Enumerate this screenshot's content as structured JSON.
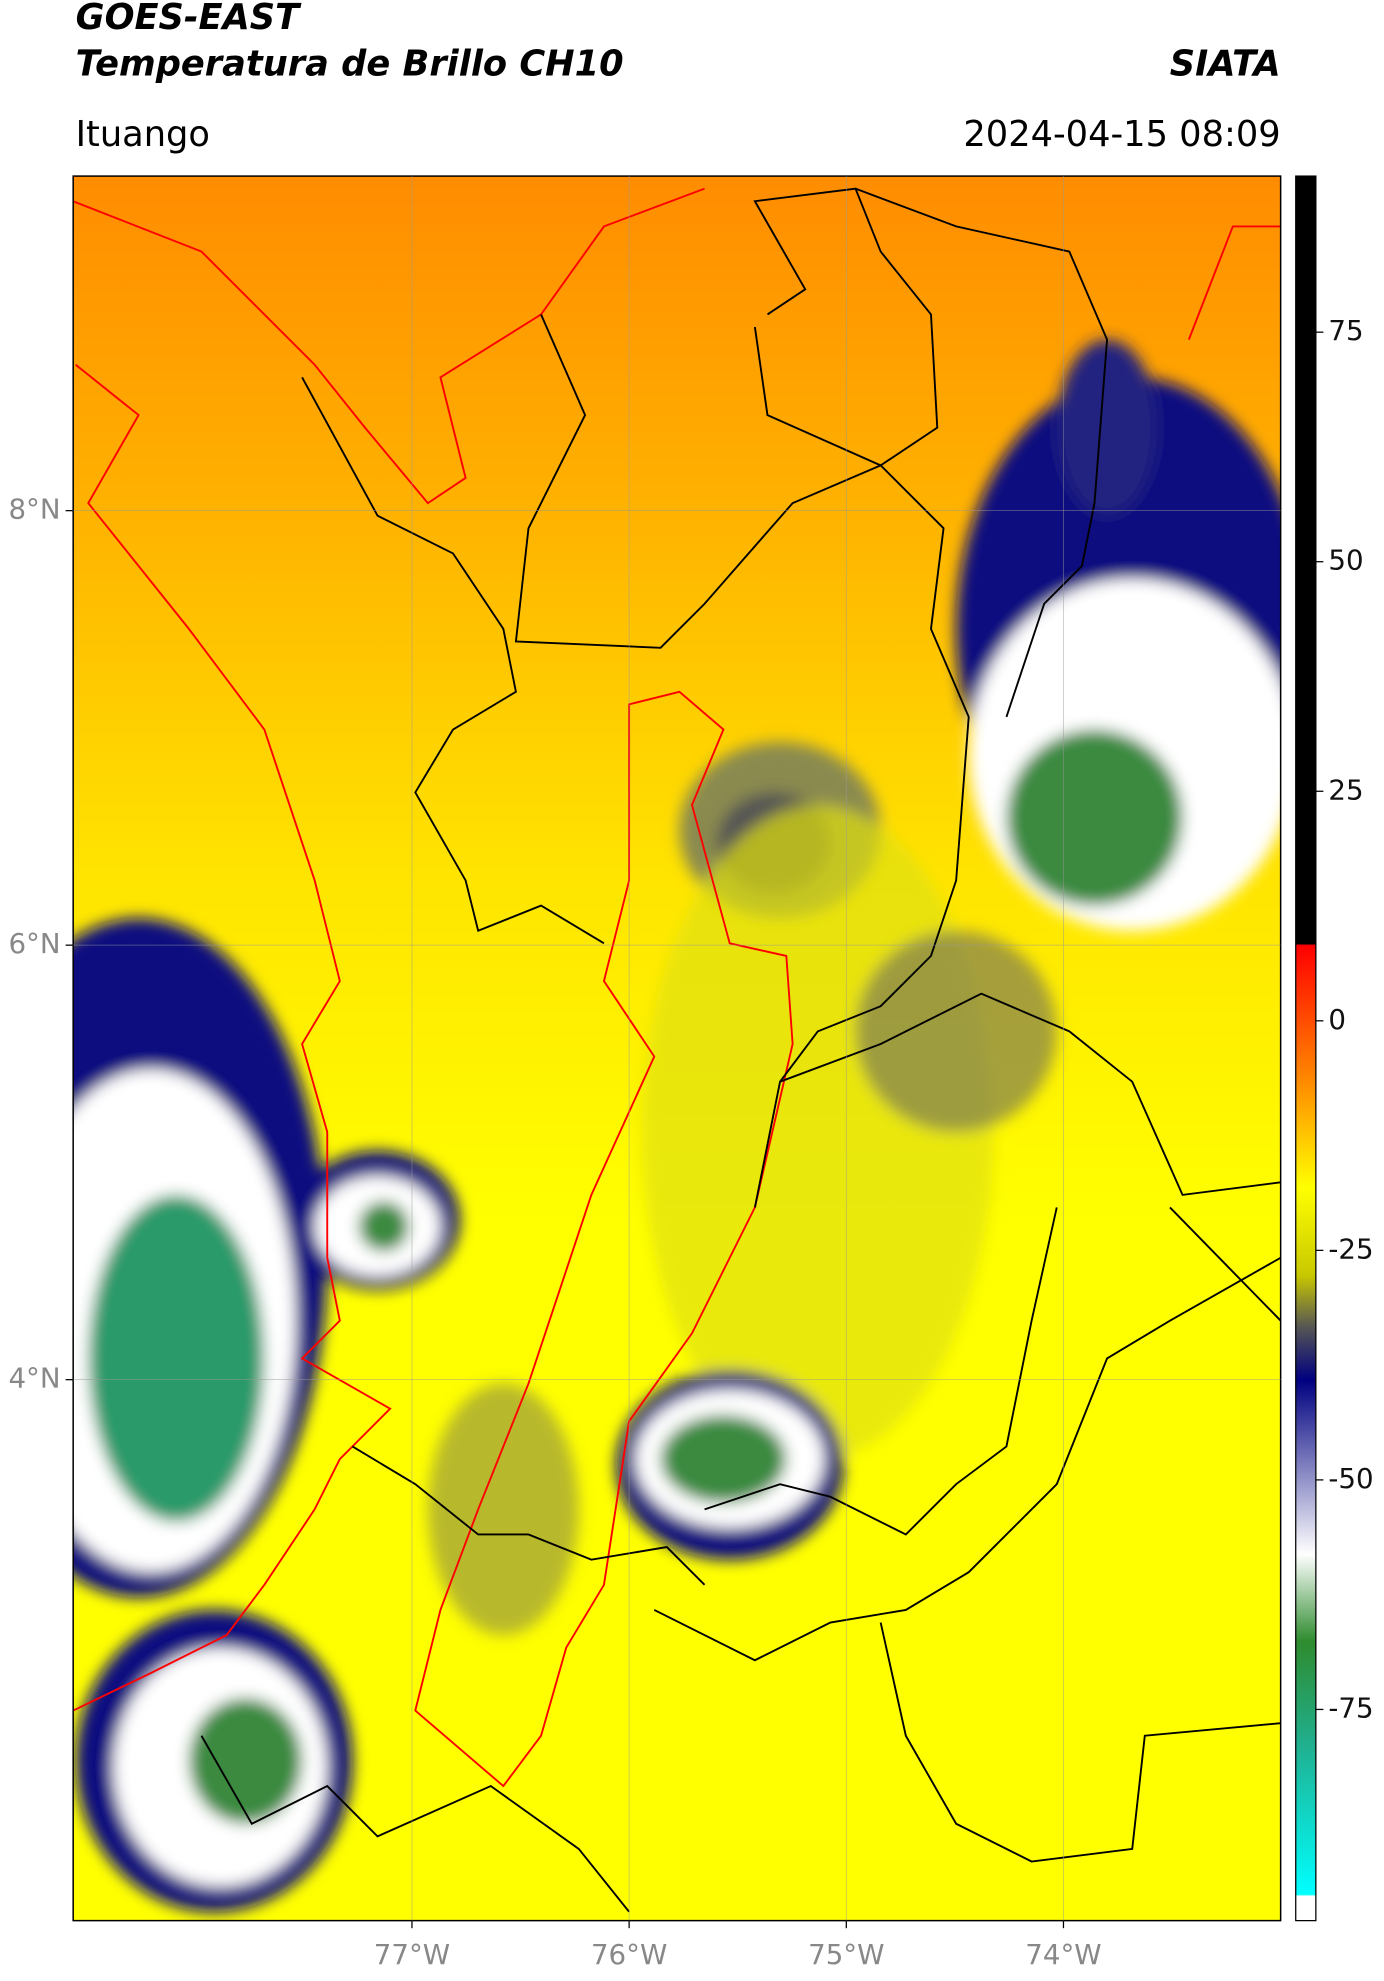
{
  "header": {
    "line1": "GOES-EAST",
    "line2": "Temperatura de Brillo CH10",
    "source": "SIATA",
    "location": "Ituango",
    "datetime": "2024-04-15 08:09"
  },
  "map": {
    "xlim": [
      -78.56,
      -73.0
    ],
    "ylim": [
      1.51,
      9.54
    ],
    "xticks": [
      {
        "value": -77,
        "label": "77°W"
      },
      {
        "value": -76,
        "label": "76°W"
      },
      {
        "value": -75,
        "label": "75°W"
      },
      {
        "value": -74,
        "label": "74°W"
      }
    ],
    "yticks": [
      {
        "value": 8,
        "label": "8°N"
      },
      {
        "value": 6,
        "label": "6°N"
      },
      {
        "value": 4,
        "label": "4°N"
      }
    ],
    "grid": true
  },
  "colorbar": {
    "lim": [
      -98,
      92
    ],
    "ticks": [
      75,
      50,
      25,
      0,
      -25,
      -50,
      -75
    ]
  }
}
